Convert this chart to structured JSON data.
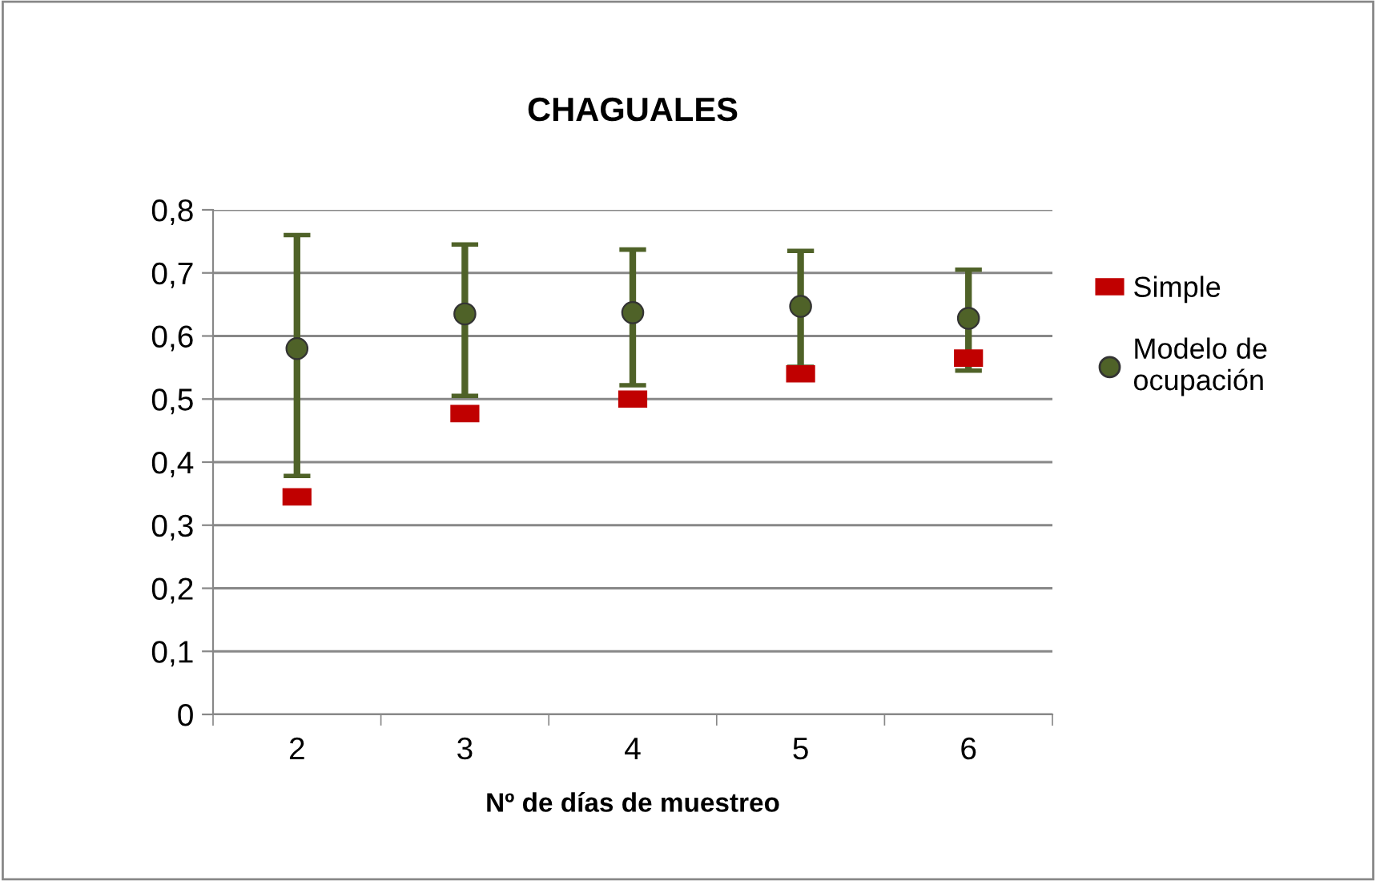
{
  "chart_data": {
    "type": "scatter",
    "title": "CHAGUALES",
    "xlabel": "Nº de días de muestreo",
    "categories": [
      "2",
      "3",
      "4",
      "5",
      "6"
    ],
    "series": [
      {
        "name": "Simple",
        "color": "#c00000",
        "marker": "square",
        "values": [
          0.345,
          0.477,
          0.5,
          0.54,
          0.565
        ]
      },
      {
        "name": "Modelo de ocupación",
        "color": "#4f6228",
        "marker": "circle",
        "values": [
          0.58,
          0.635,
          0.637,
          0.647,
          0.628
        ],
        "errors": [
          [
            0.378,
            0.76
          ],
          [
            0.505,
            0.745
          ],
          [
            0.522,
            0.737
          ],
          [
            0.551,
            0.735
          ],
          [
            0.545,
            0.705
          ]
        ]
      }
    ],
    "ylim": [
      0,
      0.8
    ],
    "yticks": [
      {
        "value": 0,
        "label": "0"
      },
      {
        "value": 0.1,
        "label": "0,1"
      },
      {
        "value": 0.2,
        "label": "0,2"
      },
      {
        "value": 0.3,
        "label": "0,3"
      },
      {
        "value": 0.4,
        "label": "0,4"
      },
      {
        "value": 0.5,
        "label": "0,5"
      },
      {
        "value": 0.6,
        "label": "0,6"
      },
      {
        "value": 0.7,
        "label": "0,7"
      },
      {
        "value": 0.8,
        "label": "0,8"
      }
    ],
    "grid": "y",
    "legend": "right"
  }
}
